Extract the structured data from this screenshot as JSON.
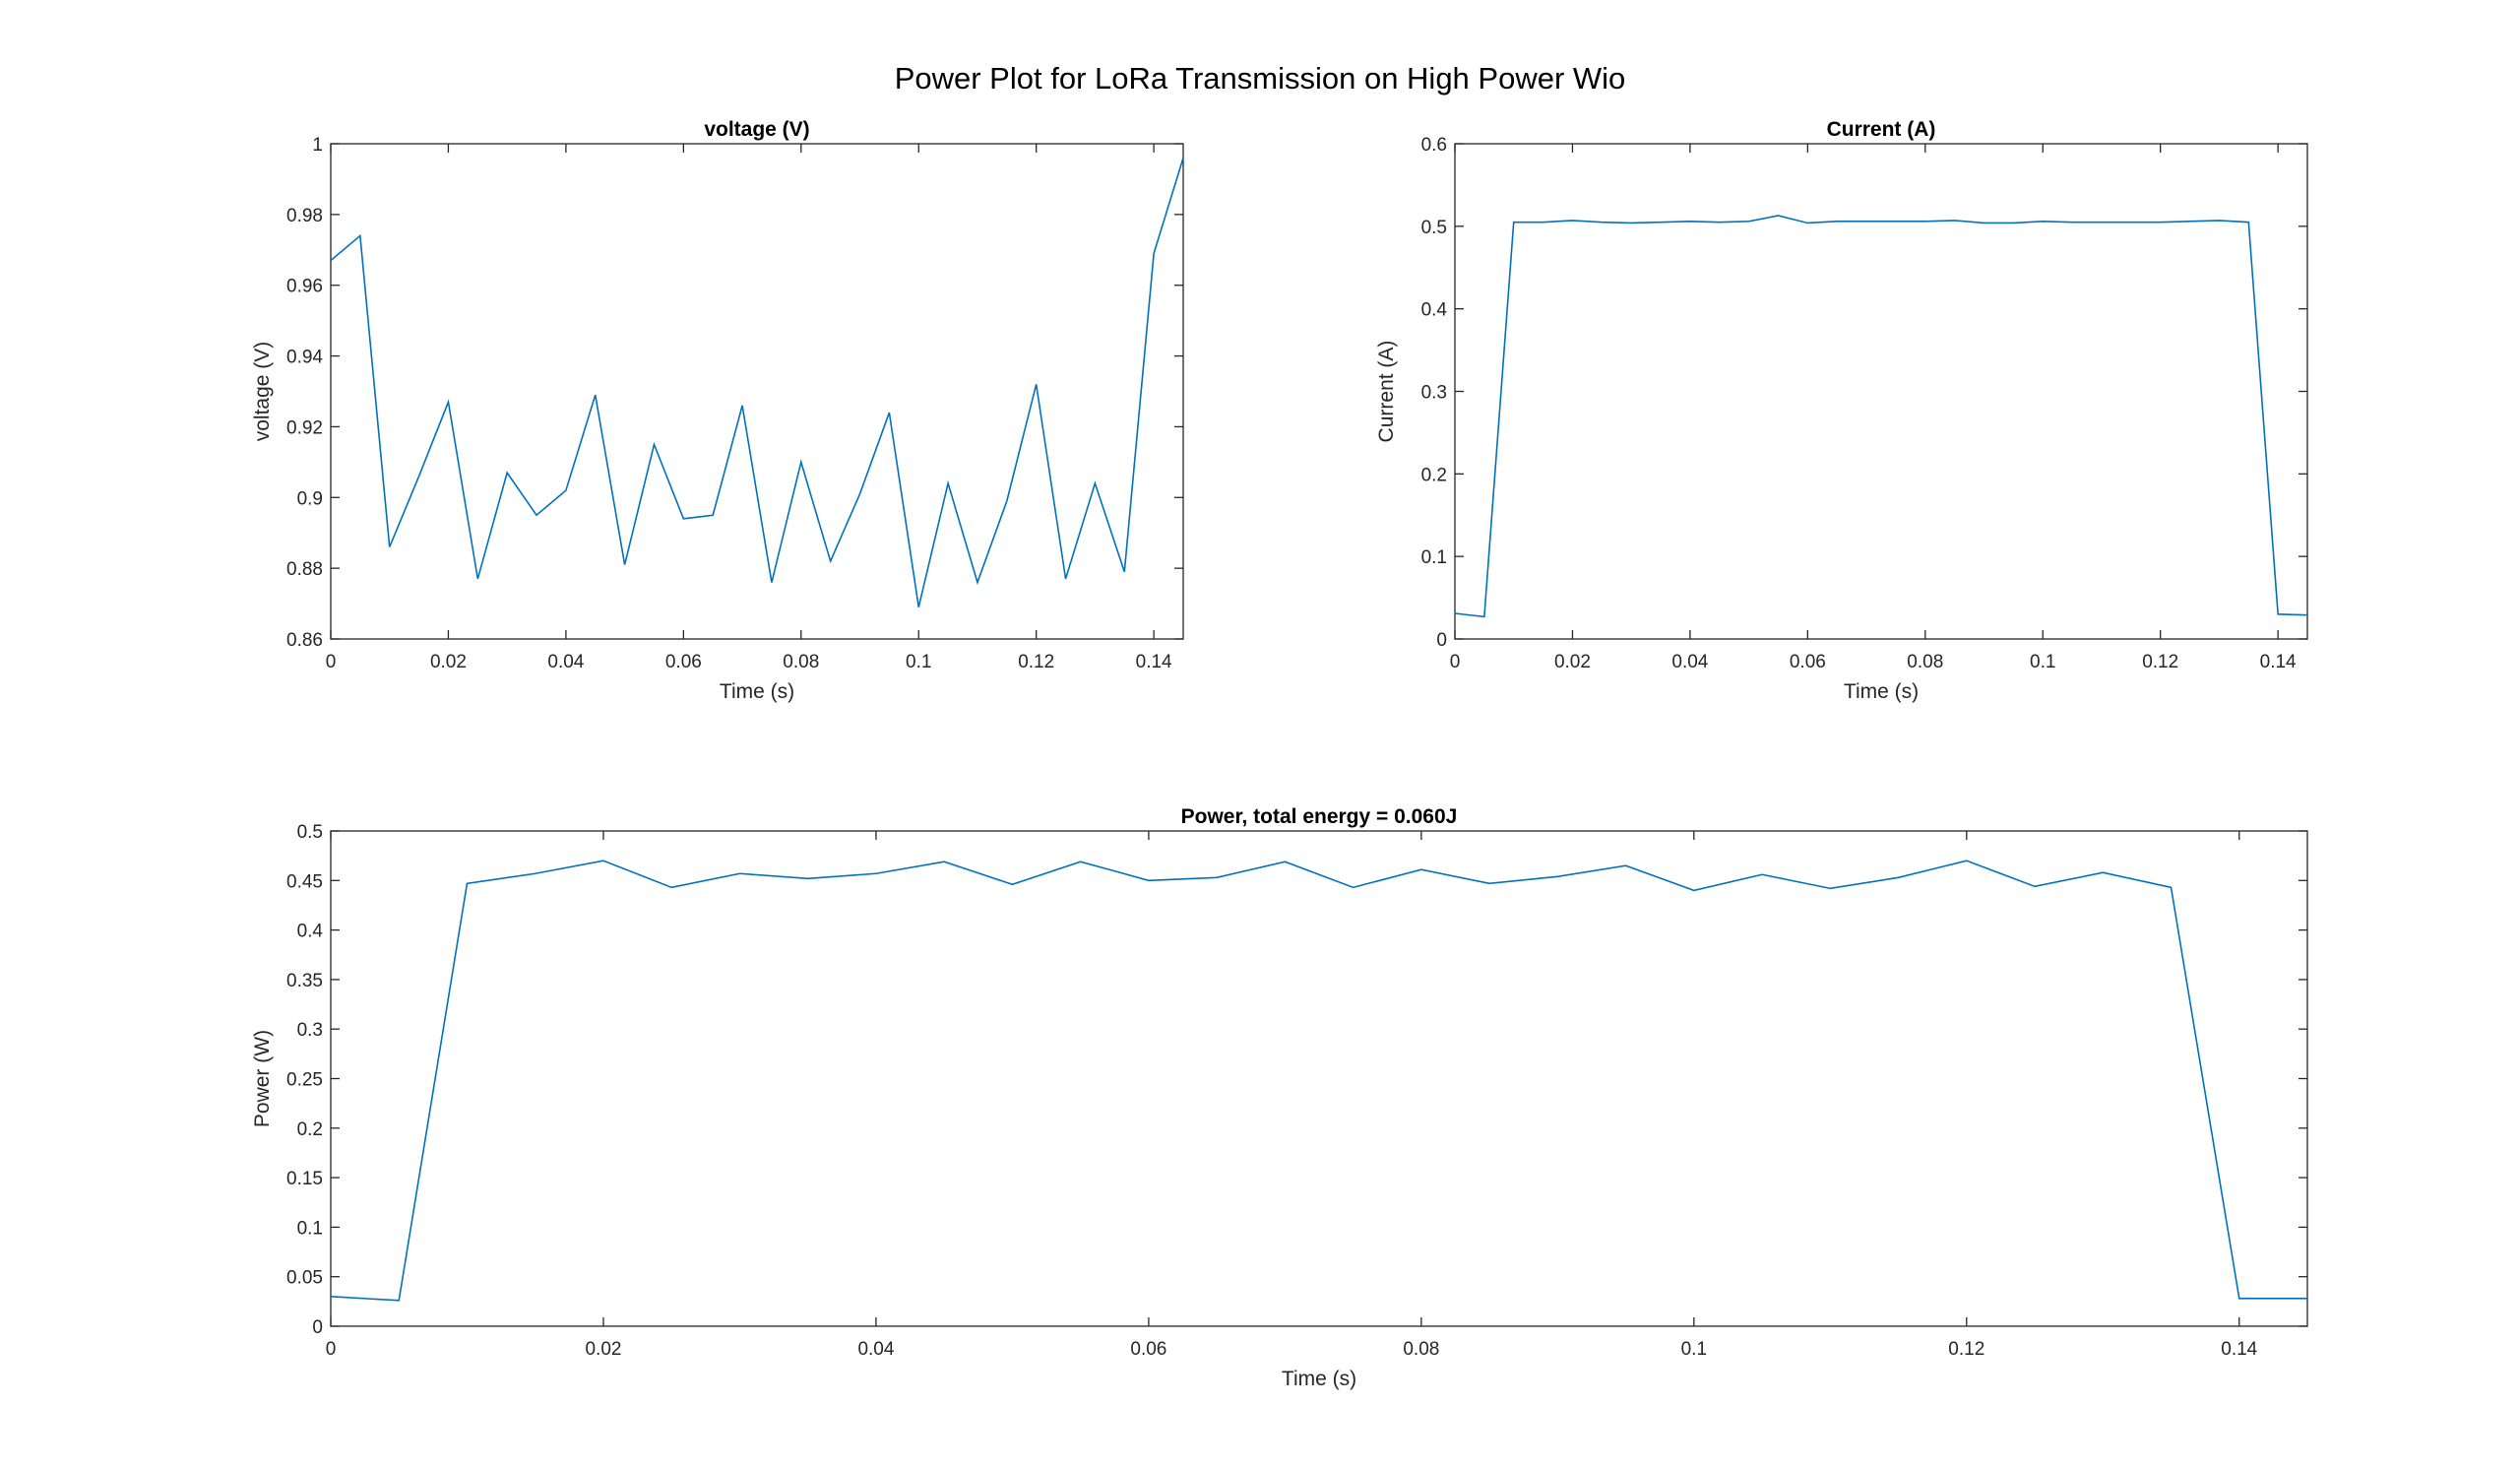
{
  "figure": {
    "title": "Power Plot for LoRa Transmission on High Power Wio"
  },
  "chart_data": [
    {
      "type": "line",
      "title": "voltage (V)",
      "xlabel": "Time (s)",
      "ylabel": "voltage (V)",
      "xlim": [
        0,
        0.145
      ],
      "ylim": [
        0.86,
        1.0
      ],
      "xticks": [
        0,
        0.02,
        0.04,
        0.06,
        0.08,
        0.1,
        0.12,
        0.14
      ],
      "xtick_labels": [
        "0",
        "0.02",
        "0.04",
        "0.06",
        "0.08",
        "0.1",
        "0.12",
        "0.14"
      ],
      "yticks": [
        0.86,
        0.88,
        0.9,
        0.92,
        0.94,
        0.96,
        0.98,
        1.0
      ],
      "ytick_labels": [
        "0.86",
        "0.88",
        "0.9",
        "0.92",
        "0.94",
        "0.96",
        "0.98",
        "1"
      ],
      "grid": false,
      "color": "#0072bd",
      "series": [
        {
          "x": [
            0,
            0.005,
            0.01,
            0.015,
            0.02,
            0.025,
            0.03,
            0.035,
            0.04,
            0.045,
            0.05,
            0.055,
            0.06,
            0.065,
            0.07,
            0.075,
            0.08,
            0.085,
            0.09,
            0.095,
            0.1,
            0.105,
            0.11,
            0.115,
            0.12,
            0.125,
            0.13,
            0.135,
            0.14,
            0.145
          ],
          "values": [
            0.967,
            0.974,
            0.886,
            0.906,
            0.927,
            0.877,
            0.907,
            0.895,
            0.902,
            0.929,
            0.881,
            0.915,
            0.894,
            0.895,
            0.926,
            0.876,
            0.91,
            0.882,
            0.901,
            0.924,
            0.869,
            0.904,
            0.876,
            0.899,
            0.932,
            0.877,
            0.904,
            0.879,
            0.969,
            0.996
          ]
        }
      ]
    },
    {
      "type": "line",
      "title": "Current (A)",
      "xlabel": "Time (s)",
      "ylabel": "Current (A)",
      "xlim": [
        0,
        0.145
      ],
      "ylim": [
        0,
        0.6
      ],
      "xticks": [
        0,
        0.02,
        0.04,
        0.06,
        0.08,
        0.1,
        0.12,
        0.14
      ],
      "xtick_labels": [
        "0",
        "0.02",
        "0.04",
        "0.06",
        "0.08",
        "0.1",
        "0.12",
        "0.14"
      ],
      "yticks": [
        0,
        0.1,
        0.2,
        0.3,
        0.4,
        0.5,
        0.6
      ],
      "ytick_labels": [
        "0",
        "0.1",
        "0.2",
        "0.3",
        "0.4",
        "0.5",
        "0.6"
      ],
      "grid": false,
      "color": "#0072bd",
      "series": [
        {
          "x": [
            0,
            0.005,
            0.01,
            0.015,
            0.02,
            0.025,
            0.03,
            0.035,
            0.04,
            0.045,
            0.05,
            0.055,
            0.06,
            0.065,
            0.07,
            0.075,
            0.08,
            0.085,
            0.09,
            0.095,
            0.1,
            0.105,
            0.11,
            0.115,
            0.12,
            0.125,
            0.13,
            0.135,
            0.14,
            0.145
          ],
          "values": [
            0.031,
            0.027,
            0.505,
            0.505,
            0.507,
            0.505,
            0.504,
            0.505,
            0.506,
            0.505,
            0.506,
            0.513,
            0.504,
            0.506,
            0.506,
            0.506,
            0.506,
            0.507,
            0.504,
            0.504,
            0.506,
            0.505,
            0.505,
            0.505,
            0.505,
            0.506,
            0.507,
            0.505,
            0.03,
            0.029
          ]
        }
      ]
    },
    {
      "type": "line",
      "title": "Power, total energy = 0.060J",
      "xlabel": "Time (s)",
      "ylabel": "Power (W)",
      "xlim": [
        0,
        0.145
      ],
      "ylim": [
        0,
        0.5
      ],
      "xticks": [
        0,
        0.02,
        0.04,
        0.06,
        0.08,
        0.1,
        0.12,
        0.14
      ],
      "xtick_labels": [
        "0",
        "0.02",
        "0.04",
        "0.06",
        "0.08",
        "0.1",
        "0.12",
        "0.14"
      ],
      "yticks": [
        0,
        0.05,
        0.1,
        0.15,
        0.2,
        0.25,
        0.3,
        0.35,
        0.4,
        0.45,
        0.5
      ],
      "ytick_labels": [
        "0",
        "0.05",
        "0.1",
        "0.15",
        "0.2",
        "0.25",
        "0.3",
        "0.35",
        "0.4",
        "0.45",
        "0.5"
      ],
      "grid": false,
      "color": "#0072bd",
      "series": [
        {
          "x": [
            0,
            0.005,
            0.01,
            0.015,
            0.02,
            0.025,
            0.03,
            0.035,
            0.04,
            0.045,
            0.05,
            0.055,
            0.06,
            0.065,
            0.07,
            0.075,
            0.08,
            0.085,
            0.09,
            0.095,
            0.1,
            0.105,
            0.11,
            0.115,
            0.12,
            0.125,
            0.13,
            0.135,
            0.14,
            0.145
          ],
          "values": [
            0.03,
            0.026,
            0.447,
            0.457,
            0.47,
            0.443,
            0.457,
            0.452,
            0.457,
            0.469,
            0.446,
            0.469,
            0.45,
            0.453,
            0.469,
            0.443,
            0.461,
            0.447,
            0.454,
            0.465,
            0.44,
            0.456,
            0.442,
            0.453,
            0.47,
            0.444,
            0.458,
            0.443,
            0.028,
            0.028
          ]
        }
      ]
    }
  ]
}
